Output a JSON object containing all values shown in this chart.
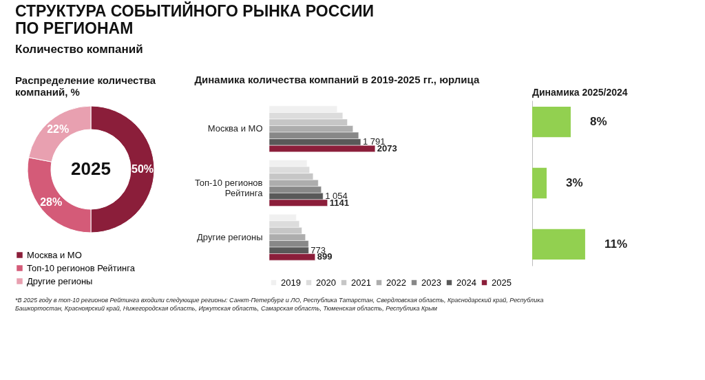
{
  "chart_data": [
    {
      "type": "other",
      "title": "СТРУКТУРА СОБЫТИЙНОГО РЫНКА РОССИИ\nПО РЕГИОНАМ",
      "subtitle": "Количество компаний",
      "annotations": [
        "*В 2025 году в топ-10 регионов Рейтинга входили следующие регионы: Санкт-Петербург и ЛО, Республика Татарстан, Свердловская область, Краснодарский край, Республика Башкортостан, Красноярский край, Нижегородская область, Иркутская область, Самарская область, Тюменская область, Республика Крым"
      ]
    },
    {
      "type": "donut",
      "title": "Распределение количества компаний, %",
      "categories": [
        "Москва и МО",
        "Топ-10 регионов Рейтинга",
        "Другие регионы"
      ],
      "values": [
        50,
        28,
        22
      ],
      "colors": [
        "#8b1e3a",
        "#d45b78",
        "#e8a0b0"
      ],
      "value_labels": [
        "50%",
        "28%",
        "22%"
      ],
      "annotations": [
        "2025"
      ],
      "legend": "bottom"
    },
    {
      "type": "bar",
      "orientation": "horizontal",
      "title": "Динамика количества компаний в 2019-2025 гг., юрлица",
      "categories": [
        "Москва и МО",
        "Топ-10 регионов Рейтинга",
        "Другие регионы"
      ],
      "legend": "bottom",
      "series": [
        {
          "name": "2019",
          "color": "#f0f0f0",
          "values": [
            1330,
            740,
            530
          ]
        },
        {
          "name": "2020",
          "color": "#dcdcdc",
          "values": [
            1440,
            790,
            590
          ]
        },
        {
          "name": "2021",
          "color": "#c6c6c6",
          "values": [
            1530,
            860,
            640
          ]
        },
        {
          "name": "2022",
          "color": "#adadad",
          "values": [
            1640,
            960,
            710
          ]
        },
        {
          "name": "2023",
          "color": "#888888",
          "values": [
            1750,
            1020,
            770
          ]
        },
        {
          "name": "2024",
          "color": "#595959",
          "values": [
            1791,
            1054,
            773
          ],
          "value_labels": [
            "1 791",
            "1 054",
            "773"
          ]
        },
        {
          "name": "2025",
          "color": "#8b1e3a",
          "values": [
            2073,
            1141,
            899
          ],
          "value_labels": [
            "2073",
            "1141",
            "899"
          ]
        }
      ]
    },
    {
      "type": "bar",
      "orientation": "horizontal",
      "title": "Динамика 2025/2024",
      "categories": [
        null,
        null,
        null
      ],
      "values": [
        8,
        3,
        11
      ],
      "colors": [
        "#92d050",
        "#92d050",
        "#92d050"
      ],
      "value_labels": [
        "8%",
        "3%",
        "11%"
      ]
    }
  ]
}
